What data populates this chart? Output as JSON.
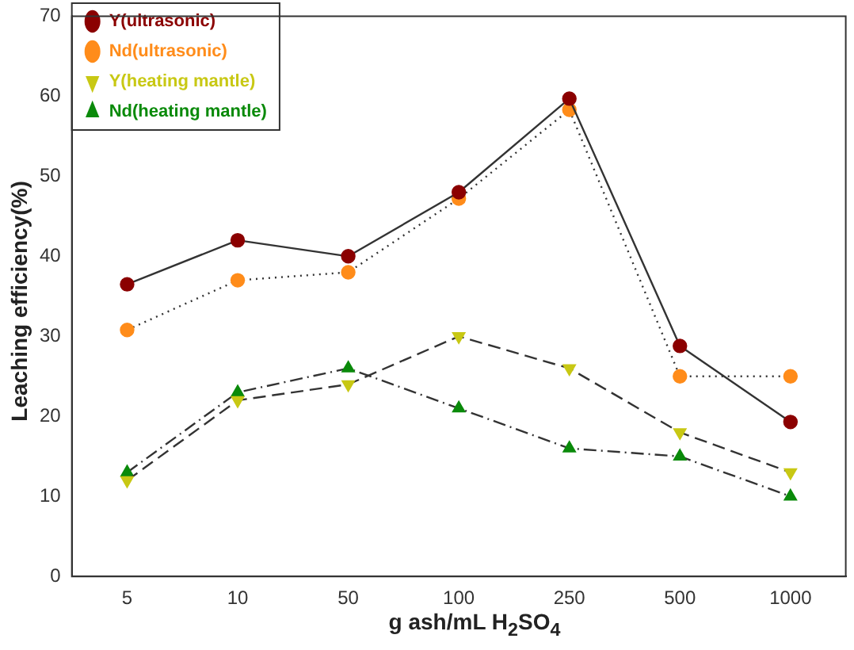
{
  "chart_data": {
    "type": "line",
    "xlabel": "g ash/mL H$_{2}$SO$_{4}$",
    "ylabel": "Leaching efficiency(%)",
    "categories": [
      "5",
      "10",
      "50",
      "100",
      "250",
      "500",
      "1000"
    ],
    "ylim": [
      0,
      70
    ],
    "yticks": [
      0,
      10,
      20,
      30,
      40,
      50,
      60,
      70
    ],
    "grid": false,
    "legend": "top left",
    "series": [
      {
        "name": "Y(ultrasonic)",
        "color": "#8b0000",
        "values": [
          36.5,
          42,
          40,
          48,
          59.7,
          28.8,
          19.3
        ],
        "marker": "circle",
        "line_style": "solid"
      },
      {
        "name": "Nd(ultrasonic)",
        "color": "#ff8c1a",
        "values": [
          30.8,
          37,
          38,
          47.2,
          58.3,
          25,
          25
        ],
        "marker": "circle",
        "line_style": "dotted"
      },
      {
        "name": "Y(heating mantle)",
        "color": "#c8c814",
        "values": [
          12,
          22,
          24,
          30,
          26,
          18,
          13
        ],
        "marker": "triangle-down",
        "line_style": "dashed"
      },
      {
        "name": "Nd(heating mantle)",
        "color": "#0a8a0a",
        "values": [
          13,
          23,
          26,
          21,
          16,
          15,
          10
        ],
        "marker": "triangle",
        "line_style": "dashdot"
      }
    ]
  }
}
